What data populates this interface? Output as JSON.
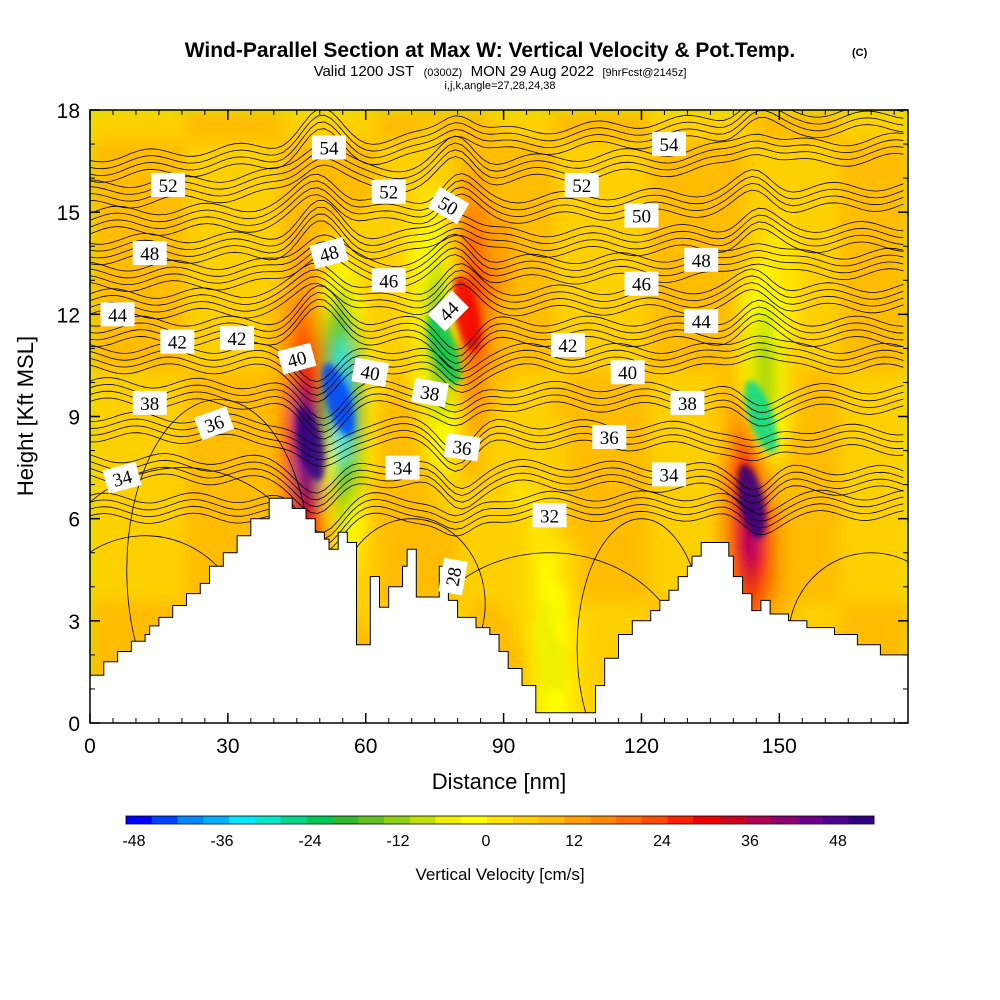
{
  "chart_data": {
    "type": "heatmap",
    "title": "Wind-Parallel Section at Max W: Vertical Velocity & Pot.Temp.",
    "title_mark": "(C)",
    "subtitle_main": "Valid 1200 JST",
    "subtitle_z": "(0300Z)",
    "subtitle_date": "MON 29 Aug 2022",
    "subtitle_fcst": "[9hrFcst@2145z]",
    "subsubtitle": "i,j,k,angle=27,28,24,38",
    "xlabel": "Distance [nm]",
    "ylabel": "Height [Kft MSL]",
    "xlim": [
      0,
      178
    ],
    "ylim": [
      0,
      18
    ],
    "x_ticks": [
      "0",
      "30",
      "60",
      "90",
      "120",
      "150"
    ],
    "x_tick_values": [
      0,
      30,
      60,
      90,
      120,
      150
    ],
    "y_ticks": [
      "0",
      "3",
      "6",
      "9",
      "12",
      "15",
      "18"
    ],
    "y_tick_values": [
      0,
      3,
      6,
      9,
      12,
      15,
      18
    ],
    "colorbar": {
      "title": "Vertical Velocity [cm/s]",
      "min": -48,
      "max": 51,
      "step": 3,
      "tick_labels": [
        "-48",
        "-36",
        "-24",
        "-12",
        "0",
        "12",
        "24",
        "36",
        "48"
      ],
      "tick_values": [
        -48,
        -36,
        -24,
        -12,
        0,
        12,
        24,
        36,
        48
      ],
      "colors": [
        "#0000ff",
        "#0044ff",
        "#0088ff",
        "#00b0ff",
        "#00e8ff",
        "#00e8c8",
        "#00d890",
        "#00c858",
        "#30b830",
        "#60c020",
        "#90d010",
        "#c0e000",
        "#eef000",
        "#ffff00",
        "#ffe400",
        "#ffd000",
        "#ffbc00",
        "#ffa000",
        "#ff8800",
        "#ff6c00",
        "#ff4c00",
        "#ff2000",
        "#f00000",
        "#d00020",
        "#b00050",
        "#900070",
        "#700090",
        "#500090",
        "#300080"
      ]
    },
    "terrain_km_kft": [
      [
        0,
        1.4
      ],
      [
        3,
        1.4
      ],
      [
        3,
        1.8
      ],
      [
        6,
        1.8
      ],
      [
        6,
        2.1
      ],
      [
        9,
        2.1
      ],
      [
        9,
        2.4
      ],
      [
        12,
        2.4
      ],
      [
        12,
        2.6
      ],
      [
        13,
        2.6
      ],
      [
        13,
        2.85
      ],
      [
        15,
        2.85
      ],
      [
        15,
        3.1
      ],
      [
        18,
        3.1
      ],
      [
        18,
        3.45
      ],
      [
        21,
        3.45
      ],
      [
        21,
        3.8
      ],
      [
        24,
        3.8
      ],
      [
        24,
        4.1
      ],
      [
        26,
        4.1
      ],
      [
        26,
        4.6
      ],
      [
        29,
        4.6
      ],
      [
        29,
        5.0
      ],
      [
        32,
        5.0
      ],
      [
        32,
        5.5
      ],
      [
        35,
        5.5
      ],
      [
        35,
        6.0
      ],
      [
        39,
        6.0
      ],
      [
        39,
        6.6
      ],
      [
        44,
        6.6
      ],
      [
        44,
        6.3
      ],
      [
        47,
        6.3
      ],
      [
        47,
        6.0
      ],
      [
        49,
        6.0
      ],
      [
        49,
        5.6
      ],
      [
        51,
        5.6
      ],
      [
        51,
        5.4
      ],
      [
        52,
        5.4
      ],
      [
        52,
        5.1
      ],
      [
        54,
        5.1
      ],
      [
        54,
        5.6
      ],
      [
        56,
        5.6
      ],
      [
        56,
        5.3
      ],
      [
        58,
        5.3
      ],
      [
        58,
        2.3
      ],
      [
        61,
        2.3
      ],
      [
        61,
        4.3
      ],
      [
        63,
        4.3
      ],
      [
        63,
        3.4
      ],
      [
        65,
        3.4
      ],
      [
        65,
        4.0
      ],
      [
        68,
        4.0
      ],
      [
        68,
        4.6
      ],
      [
        69,
        4.6
      ],
      [
        69,
        5.1
      ],
      [
        71,
        5.1
      ],
      [
        71,
        3.7
      ],
      [
        76,
        3.7
      ],
      [
        76,
        4.6
      ],
      [
        78,
        4.6
      ],
      [
        78,
        3.6
      ],
      [
        80,
        3.6
      ],
      [
        80,
        3.1
      ],
      [
        84,
        3.1
      ],
      [
        84,
        2.8
      ],
      [
        87,
        2.8
      ],
      [
        87,
        2.6
      ],
      [
        89,
        2.6
      ],
      [
        89,
        2.1
      ],
      [
        91,
        2.1
      ],
      [
        91,
        1.6
      ],
      [
        94,
        1.6
      ],
      [
        94,
        1.1
      ],
      [
        97,
        1.1
      ],
      [
        97,
        0.3
      ],
      [
        110,
        0.3
      ],
      [
        110,
        1.1
      ],
      [
        112,
        1.1
      ],
      [
        112,
        1.9
      ],
      [
        115,
        1.9
      ],
      [
        115,
        2.6
      ],
      [
        118,
        2.6
      ],
      [
        118,
        3.0
      ],
      [
        122,
        3.0
      ],
      [
        122,
        3.3
      ],
      [
        124,
        3.3
      ],
      [
        124,
        3.6
      ],
      [
        126,
        3.6
      ],
      [
        126,
        3.9
      ],
      [
        128,
        3.9
      ],
      [
        128,
        4.3
      ],
      [
        130,
        4.3
      ],
      [
        130,
        4.6
      ],
      [
        131,
        4.6
      ],
      [
        131,
        4.9
      ],
      [
        133,
        4.9
      ],
      [
        133,
        5.3
      ],
      [
        139,
        5.3
      ],
      [
        139,
        4.9
      ],
      [
        140,
        4.9
      ],
      [
        140,
        4.3
      ],
      [
        142,
        4.3
      ],
      [
        142,
        3.8
      ],
      [
        144,
        3.8
      ],
      [
        144,
        3.3
      ],
      [
        146,
        3.3
      ],
      [
        146,
        3.6
      ],
      [
        148,
        3.6
      ],
      [
        148,
        3.2
      ],
      [
        152,
        3.2
      ],
      [
        152,
        3.0
      ],
      [
        156,
        3.0
      ],
      [
        156,
        2.8
      ],
      [
        162,
        2.8
      ],
      [
        162,
        2.6
      ],
      [
        167,
        2.6
      ],
      [
        167,
        2.3
      ],
      [
        172,
        2.3
      ],
      [
        172,
        2.0
      ],
      [
        178,
        2.0
      ]
    ],
    "vertical_velocity_features": [
      {
        "x": 48,
        "y": 8.2,
        "w": 45,
        "note": "updraft core"
      },
      {
        "x": 54,
        "y": 9.5,
        "w": -45,
        "note": "downdraft core"
      },
      {
        "x": 82,
        "y": 12.0,
        "w": 20,
        "note": "updraft band"
      },
      {
        "x": 77,
        "y": 11.0,
        "w": -25,
        "note": "downdraft band"
      },
      {
        "x": 144,
        "y": 6.5,
        "w": 40,
        "note": "updraft"
      },
      {
        "x": 146,
        "y": 9.0,
        "w": -30,
        "note": "downdraft"
      },
      {
        "x": 100,
        "y": 2.0,
        "w": -12,
        "note": "valley downdraft"
      }
    ],
    "theta_contours": [
      {
        "label": "54",
        "y_left": 16.0,
        "y_right": 17.5
      },
      {
        "label": "52",
        "y_left": 15.2,
        "y_right": 16.6
      },
      {
        "label": "50",
        "y_left": 14.4,
        "y_right": 15.2
      },
      {
        "label": "48",
        "y_left": 13.6,
        "y_right": 14.0
      },
      {
        "label": "46",
        "y_left": 12.8,
        "y_right": 13.2
      },
      {
        "label": "44",
        "y_left": 12.0,
        "y_right": 12.2
      },
      {
        "label": "42",
        "y_left": 11.2,
        "y_right": 11.2
      },
      {
        "label": "40",
        "y_left": 10.4,
        "y_right": 10.4
      },
      {
        "label": "38",
        "y_left": 9.4,
        "y_right": 9.2
      },
      {
        "label": "36",
        "y_left": 8.4,
        "y_right": 8.0
      },
      {
        "label": "34",
        "y_left": 7.2,
        "y_right": 6.8
      },
      {
        "label": "32",
        "y_left": 6.0,
        "y_right": 6.1
      }
    ],
    "contour_labels": [
      {
        "text": "54",
        "x": 52,
        "y": 16.9,
        "rot": 0
      },
      {
        "text": "52",
        "x": 17,
        "y": 15.8,
        "rot": 0
      },
      {
        "text": "52",
        "x": 65,
        "y": 15.6,
        "rot": 0
      },
      {
        "text": "52",
        "x": 107,
        "y": 15.8,
        "rot": 0
      },
      {
        "text": "54",
        "x": 126,
        "y": 17.0,
        "rot": 0
      },
      {
        "text": "50",
        "x": 78,
        "y": 15.2,
        "rot": 30
      },
      {
        "text": "50",
        "x": 120,
        "y": 14.9,
        "rot": 0
      },
      {
        "text": "48",
        "x": 13,
        "y": 13.8,
        "rot": 0
      },
      {
        "text": "48",
        "x": 52,
        "y": 13.8,
        "rot": -15
      },
      {
        "text": "48",
        "x": 133,
        "y": 13.6,
        "rot": 0
      },
      {
        "text": "46",
        "x": 65,
        "y": 13.0,
        "rot": 0
      },
      {
        "text": "46",
        "x": 120,
        "y": 12.9,
        "rot": 0
      },
      {
        "text": "44",
        "x": 6,
        "y": 12.0,
        "rot": 0
      },
      {
        "text": "44",
        "x": 78,
        "y": 12.1,
        "rot": -45
      },
      {
        "text": "44",
        "x": 133,
        "y": 11.8,
        "rot": 0
      },
      {
        "text": "42",
        "x": 19,
        "y": 11.2,
        "rot": 0
      },
      {
        "text": "42",
        "x": 32,
        "y": 11.3,
        "rot": 0
      },
      {
        "text": "42",
        "x": 104,
        "y": 11.1,
        "rot": 0
      },
      {
        "text": "40",
        "x": 45,
        "y": 10.7,
        "rot": -15
      },
      {
        "text": "40",
        "x": 61,
        "y": 10.3,
        "rot": 10
      },
      {
        "text": "40",
        "x": 117,
        "y": 10.3,
        "rot": 0
      },
      {
        "text": "38",
        "x": 13,
        "y": 9.4,
        "rot": 0
      },
      {
        "text": "38",
        "x": 74,
        "y": 9.7,
        "rot": 10
      },
      {
        "text": "38",
        "x": 130,
        "y": 9.4,
        "rot": 0
      },
      {
        "text": "36",
        "x": 27,
        "y": 8.8,
        "rot": -20
      },
      {
        "text": "36",
        "x": 81,
        "y": 8.1,
        "rot": 8
      },
      {
        "text": "36",
        "x": 113,
        "y": 8.4,
        "rot": 0
      },
      {
        "text": "34",
        "x": 7,
        "y": 7.2,
        "rot": -15
      },
      {
        "text": "34",
        "x": 68,
        "y": 7.5,
        "rot": 0
      },
      {
        "text": "34",
        "x": 126,
        "y": 7.3,
        "rot": 0
      },
      {
        "text": "32",
        "x": 100,
        "y": 6.1,
        "rot": 0
      },
      {
        "text": "28",
        "x": 79,
        "y": 4.3,
        "rot": -80
      }
    ]
  }
}
